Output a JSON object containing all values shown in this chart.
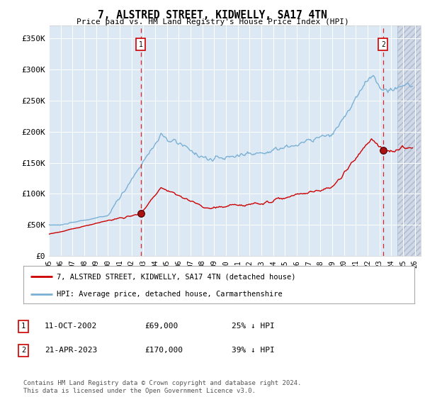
{
  "title": "7, ALSTRED STREET, KIDWELLY, SA17 4TN",
  "subtitle": "Price paid vs. HM Land Registry's House Price Index (HPI)",
  "ylabel_ticks": [
    "£0",
    "£50K",
    "£100K",
    "£150K",
    "£200K",
    "£250K",
    "£300K",
    "£350K"
  ],
  "ytick_values": [
    0,
    50000,
    100000,
    150000,
    200000,
    250000,
    300000,
    350000
  ],
  "ylim": [
    0,
    370000
  ],
  "xlim_start": 1995.0,
  "xlim_end": 2026.5,
  "background_color": "#ffffff",
  "plot_bg_color": "#dce9f5",
  "grid_color": "#ffffff",
  "sale1_date": 2002.78,
  "sale1_price": 69000,
  "sale2_date": 2023.31,
  "sale2_price": 170000,
  "legend_line1": "7, ALSTRED STREET, KIDWELLY, SA17 4TN (detached house)",
  "legend_line2": "HPI: Average price, detached house, Carmarthenshire",
  "footer_text": "Contains HM Land Registry data © Crown copyright and database right 2024.\nThis data is licensed under the Open Government Licence v3.0.",
  "red_line_color": "#cc0000",
  "blue_line_color": "#7ab0d4",
  "hatch_start": 2024.5
}
